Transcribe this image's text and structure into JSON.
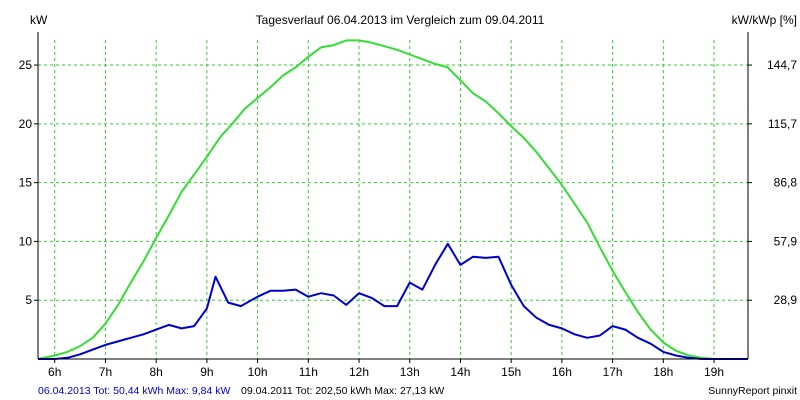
{
  "chart_data": {
    "type": "line",
    "title": "Tagesverlauf 06.04.2013 im Vergleich zum 09.04.2011",
    "ylabel_left": "kW",
    "ylabel_right": "kW/kWp [%]",
    "xlim": [
      5.67,
      19.67
    ],
    "ylim": [
      0,
      27.13
    ],
    "x_ticks": [
      {
        "x": 6,
        "label": "6h"
      },
      {
        "x": 7,
        "label": "7h"
      },
      {
        "x": 8,
        "label": "8h"
      },
      {
        "x": 9,
        "label": "9h"
      },
      {
        "x": 10,
        "label": "10h"
      },
      {
        "x": 11,
        "label": "11h"
      },
      {
        "x": 12,
        "label": "12h"
      },
      {
        "x": 13,
        "label": "13h"
      },
      {
        "x": 14,
        "label": "14h"
      },
      {
        "x": 15,
        "label": "15h"
      },
      {
        "x": 16,
        "label": "16h"
      },
      {
        "x": 17,
        "label": "17h"
      },
      {
        "x": 18,
        "label": "18h"
      },
      {
        "x": 19,
        "label": "19h"
      }
    ],
    "y_ticks_left": [
      {
        "y": 5,
        "label": "5"
      },
      {
        "y": 10,
        "label": "10"
      },
      {
        "y": 15,
        "label": "15"
      },
      {
        "y": 20,
        "label": "20"
      },
      {
        "y": 25,
        "label": "25"
      }
    ],
    "y_ticks_right": [
      {
        "y": 5,
        "label": "28,9"
      },
      {
        "y": 10,
        "label": "57,9"
      },
      {
        "y": 15,
        "label": "86,8"
      },
      {
        "y": 20,
        "label": "115,7"
      },
      {
        "y": 25,
        "label": "144,7"
      }
    ],
    "grid": true,
    "colors": {
      "series_2013": "#0000cc",
      "series_2011": "#33dd33",
      "grid": "#33cc33",
      "axis": "#000000",
      "footer_left": "#0000cc",
      "footer_right": "#000000"
    },
    "series": [
      {
        "key": "series_2011",
        "points": [
          [
            5.67,
            0
          ],
          [
            6,
            0.3
          ],
          [
            6.25,
            0.6
          ],
          [
            6.5,
            1.1
          ],
          [
            6.75,
            1.8
          ],
          [
            7,
            3.0
          ],
          [
            7.25,
            4.6
          ],
          [
            7.5,
            6.5
          ],
          [
            7.75,
            8.3
          ],
          [
            8,
            10.3
          ],
          [
            8.25,
            12.2
          ],
          [
            8.5,
            14.2
          ],
          [
            8.75,
            15.7
          ],
          [
            9,
            17.2
          ],
          [
            9.25,
            18.8
          ],
          [
            9.5,
            20.0
          ],
          [
            9.75,
            21.3
          ],
          [
            10,
            22.2
          ],
          [
            10.25,
            23.1
          ],
          [
            10.5,
            24.1
          ],
          [
            10.75,
            24.8
          ],
          [
            11,
            25.7
          ],
          [
            11.25,
            26.5
          ],
          [
            11.5,
            26.7
          ],
          [
            11.75,
            27.1
          ],
          [
            12,
            27.1
          ],
          [
            12.25,
            26.9
          ],
          [
            12.5,
            26.6
          ],
          [
            12.75,
            26.3
          ],
          [
            13,
            25.9
          ],
          [
            13.25,
            25.5
          ],
          [
            13.5,
            25.1
          ],
          [
            13.75,
            24.8
          ],
          [
            14,
            23.7
          ],
          [
            14.25,
            22.6
          ],
          [
            14.5,
            21.9
          ],
          [
            14.75,
            20.9
          ],
          [
            15,
            19.8
          ],
          [
            15.25,
            18.8
          ],
          [
            15.5,
            17.6
          ],
          [
            15.75,
            16.2
          ],
          [
            16,
            14.8
          ],
          [
            16.25,
            13.2
          ],
          [
            16.5,
            11.6
          ],
          [
            16.75,
            9.5
          ],
          [
            17,
            7.5
          ],
          [
            17.25,
            5.7
          ],
          [
            17.5,
            4.0
          ],
          [
            17.75,
            2.5
          ],
          [
            18,
            1.4
          ],
          [
            18.25,
            0.7
          ],
          [
            18.5,
            0.3
          ],
          [
            18.75,
            0.1
          ],
          [
            19,
            0
          ],
          [
            19.67,
            0
          ]
        ]
      },
      {
        "key": "series_2013",
        "points": [
          [
            5.67,
            0
          ],
          [
            6,
            0
          ],
          [
            6.25,
            0.1
          ],
          [
            6.5,
            0.4
          ],
          [
            6.75,
            0.8
          ],
          [
            7,
            1.2
          ],
          [
            7.25,
            1.5
          ],
          [
            7.5,
            1.8
          ],
          [
            7.75,
            2.1
          ],
          [
            8,
            2.5
          ],
          [
            8.25,
            2.9
          ],
          [
            8.5,
            2.6
          ],
          [
            8.75,
            2.8
          ],
          [
            9,
            4.3
          ],
          [
            9.17,
            7.0
          ],
          [
            9.42,
            4.8
          ],
          [
            9.67,
            4.5
          ],
          [
            10,
            5.3
          ],
          [
            10.25,
            5.8
          ],
          [
            10.5,
            5.8
          ],
          [
            10.75,
            5.9
          ],
          [
            11,
            5.3
          ],
          [
            11.25,
            5.6
          ],
          [
            11.5,
            5.4
          ],
          [
            11.75,
            4.6
          ],
          [
            12,
            5.6
          ],
          [
            12.25,
            5.2
          ],
          [
            12.5,
            4.5
          ],
          [
            12.75,
            4.5
          ],
          [
            13,
            6.5
          ],
          [
            13.25,
            5.9
          ],
          [
            13.5,
            8.0
          ],
          [
            13.75,
            9.8
          ],
          [
            14,
            8.0
          ],
          [
            14.25,
            8.7
          ],
          [
            14.5,
            8.6
          ],
          [
            14.75,
            8.7
          ],
          [
            15,
            6.3
          ],
          [
            15.25,
            4.5
          ],
          [
            15.5,
            3.5
          ],
          [
            15.75,
            2.9
          ],
          [
            16,
            2.6
          ],
          [
            16.25,
            2.1
          ],
          [
            16.5,
            1.8
          ],
          [
            16.75,
            2.0
          ],
          [
            17,
            2.8
          ],
          [
            17.25,
            2.5
          ],
          [
            17.5,
            1.8
          ],
          [
            17.75,
            1.3
          ],
          [
            18,
            0.6
          ],
          [
            18.25,
            0.3
          ],
          [
            18.5,
            0.1
          ],
          [
            18.75,
            0
          ],
          [
            19.67,
            0
          ]
        ]
      }
    ]
  },
  "footer": {
    "left_text": "06.04.2013 Tot: 50,44 kWh Max: 9,84 kW",
    "right_text": "09.04.2011 Tot: 202,50 kWh Max: 27,13 kW",
    "credit": "SunnyReport pinxit"
  }
}
